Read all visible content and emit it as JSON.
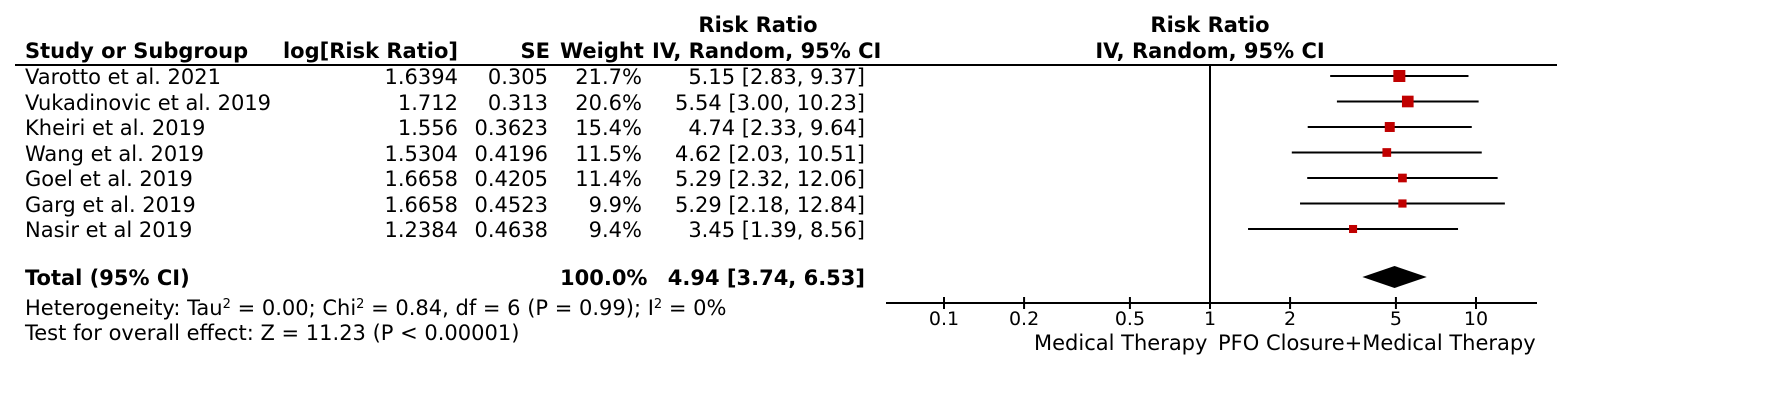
{
  "header": {
    "study": "Study or Subgroup",
    "log_rr": "log[Risk Ratio]",
    "se": "SE",
    "weight": "Weight",
    "rr_title": "Risk Ratio",
    "rr_method": "IV, Random, 95% CI",
    "plot_title": "Risk Ratio",
    "plot_method": "IV, Random, 95% CI"
  },
  "footer": {
    "total_label": "Total (95% CI)",
    "total_weight": "100.0%",
    "total_ci": "4.94 [3.74, 6.53]",
    "het_a": "Heterogeneity: Tau",
    "het_sup1": "2",
    "het_b": " = 0.00; Chi",
    "het_sup2": "2",
    "het_c": " = 0.84, df = 6 (P = 0.99); I",
    "het_sup3": "2",
    "het_d": " = 0%",
    "overall": "Test for overall effect: Z = 11.23 (P < 0.00001)",
    "favours_left": "Medical Therapy",
    "favours_right": "PFO Closure+Medical Therapy"
  },
  "chart_data": {
    "type": "forest",
    "scale": "log",
    "xlim": [
      0.07,
      17
    ],
    "null_value": 1,
    "ticks": [
      {
        "value": 0.1,
        "label": "0.1"
      },
      {
        "value": 0.2,
        "label": "0.2"
      },
      {
        "value": 0.5,
        "label": "0.5"
      },
      {
        "value": 1,
        "label": "1"
      },
      {
        "value": 2,
        "label": "2"
      },
      {
        "value": 5,
        "label": "5"
      },
      {
        "value": 10,
        "label": "10"
      }
    ],
    "studies": [
      {
        "name": "Varotto et al. 2021",
        "log_rr": "1.6394",
        "se": "0.305",
        "weight": "21.7%",
        "ci_text": "5.15 [2.83, 9.37]",
        "rr": 5.15,
        "lower": 2.83,
        "upper": 9.37,
        "w": 21.7
      },
      {
        "name": "Vukadinovic et al. 2019",
        "log_rr": "1.712",
        "se": "0.313",
        "weight": "20.6%",
        "ci_text": "5.54 [3.00, 10.23]",
        "rr": 5.54,
        "lower": 3.0,
        "upper": 10.23,
        "w": 20.6
      },
      {
        "name": "Kheiri et al. 2019",
        "log_rr": "1.556",
        "se": "0.3623",
        "weight": "15.4%",
        "ci_text": "4.74 [2.33, 9.64]",
        "rr": 4.74,
        "lower": 2.33,
        "upper": 9.64,
        "w": 15.4
      },
      {
        "name": "Wang et al. 2019",
        "log_rr": "1.5304",
        "se": "0.4196",
        "weight": "11.5%",
        "ci_text": "4.62 [2.03, 10.51]",
        "rr": 4.62,
        "lower": 2.03,
        "upper": 10.51,
        "w": 11.5
      },
      {
        "name": "Goel et al. 2019",
        "log_rr": "1.6658",
        "se": "0.4205",
        "weight": "11.4%",
        "ci_text": "5.29 [2.32, 12.06]",
        "rr": 5.29,
        "lower": 2.32,
        "upper": 12.06,
        "w": 11.4
      },
      {
        "name": "Garg et al. 2019",
        "log_rr": "1.6658",
        "se": "0.4523",
        "weight": "9.9%",
        "ci_text": "5.29 [2.18, 12.84]",
        "rr": 5.29,
        "lower": 2.18,
        "upper": 12.84,
        "w": 9.9
      },
      {
        "name": "Nasir et al 2019",
        "log_rr": "1.2384",
        "se": "0.4638",
        "weight": "9.4%",
        "ci_text": "3.45 [1.39, 8.56]",
        "rr": 3.45,
        "lower": 1.39,
        "upper": 8.56,
        "w": 9.4
      }
    ],
    "pooled": {
      "rr": 4.94,
      "lower": 3.74,
      "upper": 6.53
    },
    "colors": {
      "square": "#c00000",
      "line": "#000000",
      "diamond": "#000000"
    }
  }
}
